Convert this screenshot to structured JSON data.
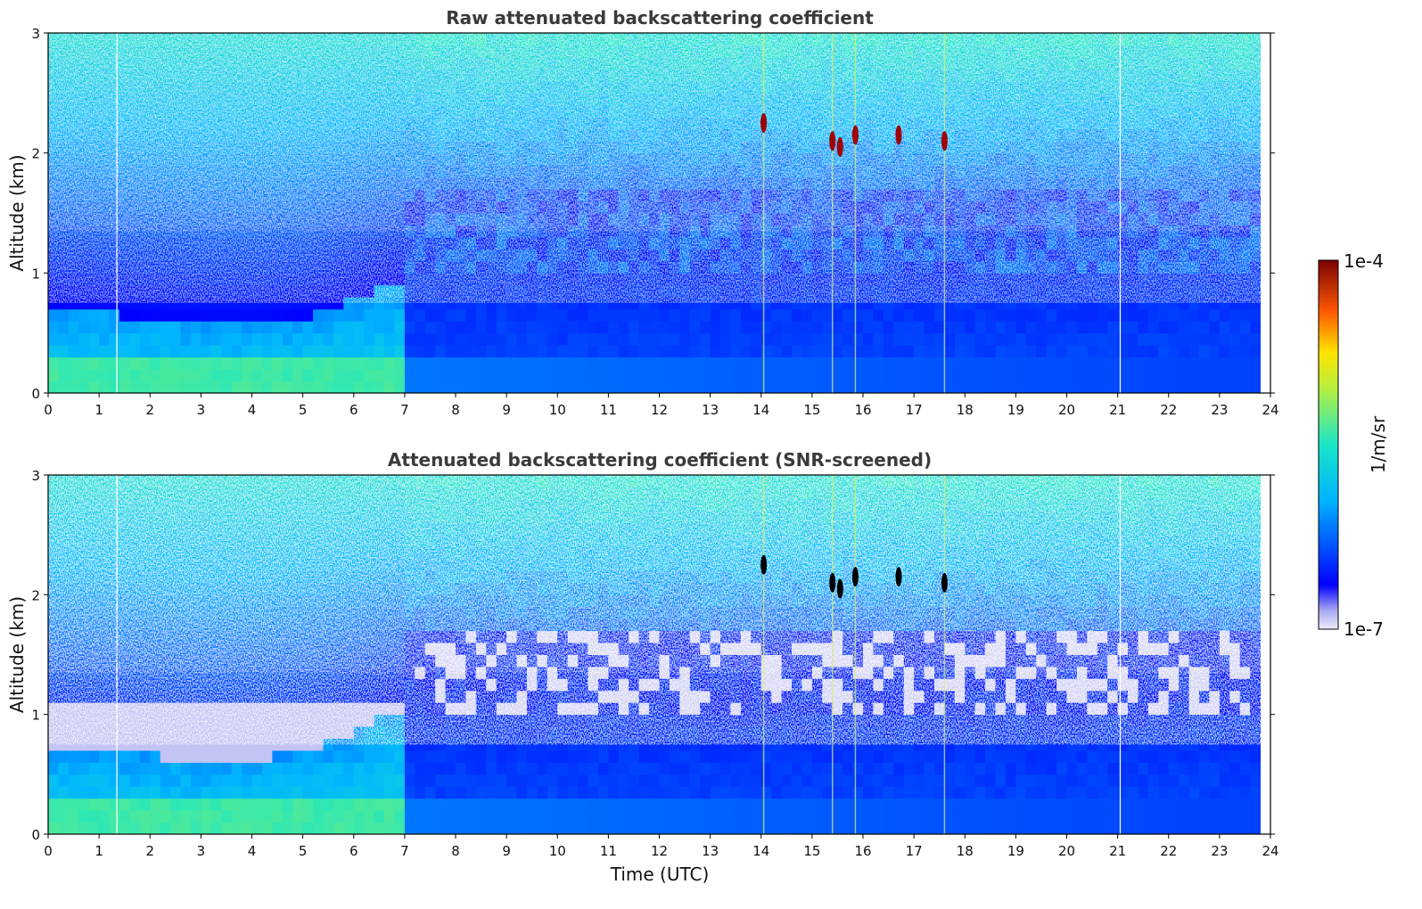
{
  "chart_data": [
    {
      "type": "heatmap",
      "title": "Raw attenuated backscattering coefficient",
      "xlabel": "",
      "ylabel": "Altitude (km)",
      "xlim": [
        0,
        24
      ],
      "ylim": [
        0,
        3
      ],
      "x_ticks": [
        "0",
        "1",
        "2",
        "3",
        "4",
        "5",
        "6",
        "7",
        "8",
        "9",
        "10",
        "11",
        "12",
        "13",
        "14",
        "15",
        "16",
        "17",
        "18",
        "19",
        "20",
        "21",
        "22",
        "23",
        "24"
      ],
      "y_ticks": [
        "0",
        "1",
        "2",
        "3"
      ],
      "data_end_time": 23.8,
      "boundary_layer_top_km": [
        {
          "t": 0,
          "z": 0.72
        },
        {
          "t": 1,
          "z": 0.68
        },
        {
          "t": 2,
          "z": 0.62
        },
        {
          "t": 3,
          "z": 0.58
        },
        {
          "t": 4,
          "z": 0.56
        },
        {
          "t": 5,
          "z": 0.62
        },
        {
          "t": 6,
          "z": 0.78
        },
        {
          "t": 7,
          "z": 0.95
        }
      ],
      "cloud_features": [
        {
          "t": 14.05,
          "z": 2.25
        },
        {
          "t": 15.4,
          "z": 2.1
        },
        {
          "t": 15.55,
          "z": 2.05
        },
        {
          "t": 15.85,
          "z": 2.15
        },
        {
          "t": 16.7,
          "z": 2.15
        },
        {
          "t": 17.6,
          "z": 2.1
        }
      ],
      "colorscale": "jet",
      "colorbar": {
        "max_label": "1e-4",
        "min_label": "1e-7",
        "label": "1/m/sr"
      }
    },
    {
      "type": "heatmap",
      "title": "Attenuated backscattering coefficient (SNR-screened)",
      "xlabel": "Time (UTC)",
      "ylabel": "Altitude (km)",
      "xlim": [
        0,
        24
      ],
      "ylim": [
        0,
        3
      ],
      "x_ticks": [
        "0",
        "1",
        "2",
        "3",
        "4",
        "5",
        "6",
        "7",
        "8",
        "9",
        "10",
        "11",
        "12",
        "13",
        "14",
        "15",
        "16",
        "17",
        "18",
        "19",
        "20",
        "21",
        "22",
        "23",
        "24"
      ],
      "y_ticks": [
        "0",
        "1",
        "2",
        "3"
      ],
      "data_end_time": 23.8,
      "boundary_layer_top_km": [
        {
          "t": 0,
          "z": 0.75
        },
        {
          "t": 1,
          "z": 0.72
        },
        {
          "t": 2,
          "z": 0.66
        },
        {
          "t": 3,
          "z": 0.62
        },
        {
          "t": 4,
          "z": 0.62
        },
        {
          "t": 5,
          "z": 0.7
        },
        {
          "t": 6,
          "z": 0.85
        },
        {
          "t": 7,
          "z": 1.05
        }
      ],
      "cloud_features": [
        {
          "t": 14.05,
          "z": 2.25
        },
        {
          "t": 15.4,
          "z": 2.1
        },
        {
          "t": 15.55,
          "z": 2.05
        },
        {
          "t": 15.85,
          "z": 2.15
        },
        {
          "t": 16.7,
          "z": 2.15
        },
        {
          "t": 17.6,
          "z": 2.1
        }
      ],
      "colorscale": "jet",
      "colorbar": {
        "max_label": "1e-4",
        "min_label": "1e-7",
        "label": "1/m/sr"
      }
    }
  ]
}
